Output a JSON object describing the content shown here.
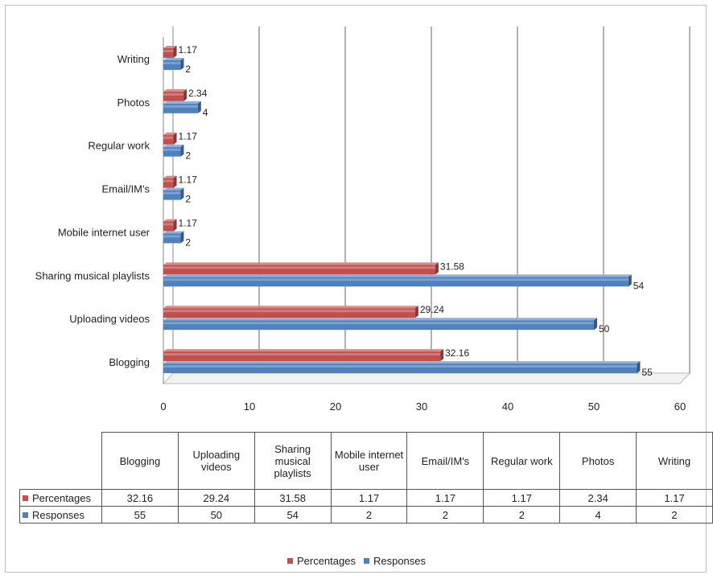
{
  "chart_data": {
    "type": "bar",
    "orientation": "horizontal",
    "categories": [
      "Blogging",
      "Uploading videos",
      "Sharing musical playlists",
      "Mobile internet user",
      "Email/IM's",
      "Regular work",
      "Photos",
      "Writing"
    ],
    "table_headers": [
      "Blogging",
      "Uploading videos",
      "Sharing musical playlists",
      "Mobile internet user",
      "Email/IM's",
      "Regular work",
      "Photos",
      "Writing"
    ],
    "series": [
      {
        "name": "Percentages",
        "values": [
          32.16,
          29.24,
          31.58,
          1.17,
          1.17,
          1.17,
          2.34,
          1.17
        ],
        "color": "#c0504d"
      },
      {
        "name": "Responses",
        "values": [
          55,
          50,
          54,
          2,
          2,
          2,
          4,
          2
        ],
        "color": "#4f81bd"
      }
    ],
    "value_labels": {
      "Percentages": [
        "32.16",
        "29.24",
        "31.58",
        "1.17",
        "1.17",
        "1.17",
        "2.34",
        "1.17"
      ],
      "Responses": [
        "55",
        "50",
        "54",
        "2",
        "2",
        "2",
        "4",
        "2"
      ]
    },
    "xlim": [
      0,
      60
    ],
    "x_ticks": [
      "0",
      "10",
      "20",
      "30",
      "40",
      "50",
      "60"
    ],
    "grid": true,
    "legend_position": "bottom",
    "data_table": true,
    "style": "3d"
  }
}
